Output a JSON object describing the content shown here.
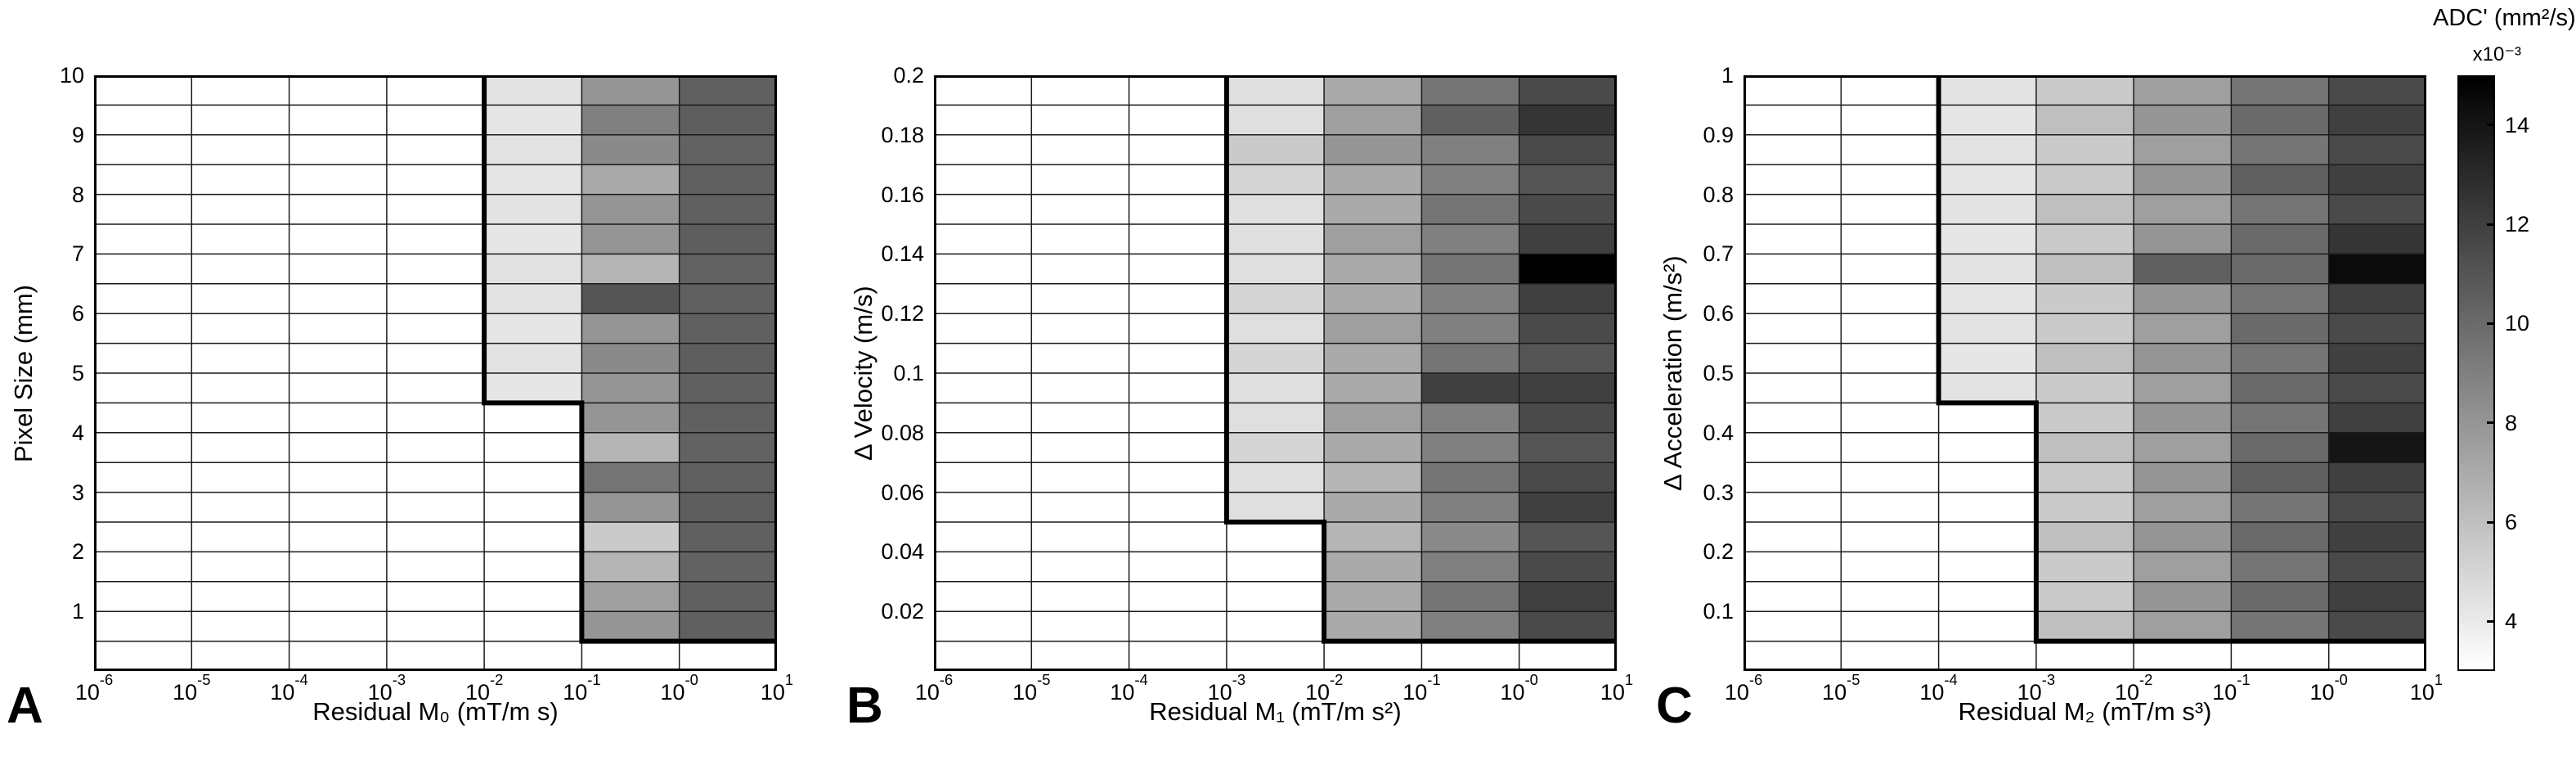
{
  "figure": {
    "background": "#ffffff"
  },
  "colorbar": {
    "title": "ADC' (mm²/s)",
    "scale_note": "x10⁻³",
    "tick_values": [
      4,
      6,
      8,
      10,
      12,
      14
    ],
    "tick_labels": [
      "4",
      "6",
      "8",
      "10",
      "12",
      "14"
    ],
    "range": [
      3,
      15
    ],
    "color_low": "#ffffff",
    "color_high": "#000000",
    "position": "right"
  },
  "chart_data": [
    {
      "type": "heatmap",
      "panel_label": "A",
      "xlabel": "Residual M₀ (mT/m s)",
      "ylabel": "Pixel Size (mm)",
      "x_scale": "log",
      "x_tick_base": "10",
      "x_tick_exponents": [
        "-6",
        "-5",
        "-4",
        "-3",
        "-2",
        "-1",
        "-0",
        "1"
      ],
      "y_range": [
        0,
        10
      ],
      "y_tick_values": [
        10,
        9,
        8,
        7,
        6,
        5,
        4,
        3,
        2,
        1
      ],
      "y_tick_labels": [
        "10",
        "9",
        "8",
        "7",
        "6",
        "5",
        "4",
        "3",
        "2",
        "1"
      ],
      "grid": true,
      "boundary": [
        [
          4,
          10
        ],
        [
          4,
          4.5
        ],
        [
          5,
          4.5
        ],
        [
          5,
          0.5
        ],
        [
          7,
          0.5
        ]
      ],
      "values": [
        [
          3,
          3,
          3,
          3,
          4.3,
          8,
          10.5
        ],
        [
          3,
          3,
          3,
          3,
          4.2,
          9,
          10.6
        ],
        [
          3,
          3,
          3,
          3,
          4.3,
          8.5,
          10.4
        ],
        [
          3,
          3,
          3,
          3,
          4.2,
          7,
          10.5
        ],
        [
          3,
          3,
          3,
          3,
          4.3,
          8,
          10.5
        ],
        [
          3,
          3,
          3,
          3,
          4.2,
          8,
          10.6
        ],
        [
          3,
          3,
          3,
          3,
          4.4,
          6.5,
          10.4
        ],
        [
          3,
          3,
          3,
          3,
          4.3,
          11,
          10.5
        ],
        [
          3,
          3,
          3,
          3,
          4.2,
          8,
          10.5
        ],
        [
          3,
          3,
          3,
          3,
          4.3,
          8.5,
          10.6
        ],
        [
          3,
          3,
          3,
          3,
          4.2,
          8,
          10.5
        ],
        [
          3,
          3,
          3,
          3,
          3,
          8,
          10.5
        ],
        [
          3,
          3,
          3,
          3,
          3,
          6.5,
          10.4
        ],
        [
          3,
          3,
          3,
          3,
          3,
          9.5,
          10.5
        ],
        [
          3,
          3,
          3,
          3,
          3,
          8,
          10.6
        ],
        [
          3,
          3,
          3,
          3,
          3,
          5.5,
          10.5
        ],
        [
          3,
          3,
          3,
          3,
          3,
          6.5,
          10.4
        ],
        [
          3,
          3,
          3,
          3,
          3,
          7.5,
          10.5
        ],
        [
          3,
          3,
          3,
          3,
          3,
          8,
          10.5
        ],
        [
          3,
          3,
          3,
          3,
          3,
          3,
          3
        ]
      ]
    },
    {
      "type": "heatmap",
      "panel_label": "B",
      "xlabel": "Residual M₁ (mT/m s²)",
      "ylabel": "Δ Velocity (m/s)",
      "x_scale": "log",
      "x_tick_base": "10",
      "x_tick_exponents": [
        "-6",
        "-5",
        "-4",
        "-3",
        "-2",
        "-1",
        "-0",
        "1"
      ],
      "y_range": [
        0,
        0.2
      ],
      "y_tick_values": [
        0.2,
        0.18,
        0.16,
        0.14,
        0.12,
        0.1,
        0.08,
        0.06,
        0.04,
        0.02
      ],
      "y_tick_labels": [
        "0.2",
        "0.18",
        "0.16",
        "0.14",
        "0.12",
        "0.1",
        "0.08",
        "0.06",
        "0.04",
        "0.02"
      ],
      "grid": true,
      "boundary": [
        [
          3,
          0.2
        ],
        [
          3,
          0.05
        ],
        [
          4,
          0.05
        ],
        [
          4,
          0.01
        ],
        [
          7,
          0.01
        ]
      ],
      "values": [
        [
          3,
          3,
          3,
          4.5,
          7,
          9.5,
          11.5
        ],
        [
          3,
          3,
          3,
          4.5,
          7.5,
          10.5,
          12.5
        ],
        [
          3,
          3,
          3,
          5.5,
          8,
          9,
          11.5
        ],
        [
          3,
          3,
          3,
          5,
          7,
          9,
          11
        ],
        [
          3,
          3,
          3,
          4.5,
          7,
          9.5,
          11.5
        ],
        [
          3,
          3,
          3,
          4.5,
          7.5,
          9,
          12
        ],
        [
          3,
          3,
          3,
          4.5,
          7,
          9.5,
          15
        ],
        [
          3,
          3,
          3,
          5,
          7,
          9,
          12
        ],
        [
          3,
          3,
          3,
          4.5,
          7.5,
          9,
          11.5
        ],
        [
          3,
          3,
          3,
          5,
          7,
          9.5,
          11
        ],
        [
          3,
          3,
          3,
          4.5,
          7,
          12,
          12
        ],
        [
          3,
          3,
          3,
          4.5,
          7.5,
          9,
          11.5
        ],
        [
          3,
          3,
          3,
          5,
          7,
          9,
          11
        ],
        [
          3,
          3,
          3,
          4.5,
          6.5,
          9.5,
          11.5
        ],
        [
          3,
          3,
          3,
          4.5,
          7,
          9,
          12
        ],
        [
          3,
          3,
          3,
          3,
          6.5,
          8.5,
          11
        ],
        [
          3,
          3,
          3,
          3,
          7,
          9,
          11.5
        ],
        [
          3,
          3,
          3,
          3,
          7,
          9.5,
          12
        ],
        [
          3,
          3,
          3,
          3,
          7,
          9,
          11.5
        ],
        [
          3,
          3,
          3,
          3,
          3,
          3,
          3
        ]
      ]
    },
    {
      "type": "heatmap",
      "panel_label": "C",
      "xlabel": "Residual M₂ (mT/m s³)",
      "ylabel": "Δ Acceleration (m/s²)",
      "x_scale": "log",
      "x_tick_base": "10",
      "x_tick_exponents": [
        "-6",
        "-5",
        "-4",
        "-3",
        "-2",
        "-1",
        "-0",
        "1"
      ],
      "y_range": [
        0,
        1
      ],
      "y_tick_values": [
        1,
        0.9,
        0.8,
        0.7,
        0.6,
        0.5,
        0.4,
        0.3,
        0.2,
        0.1
      ],
      "y_tick_labels": [
        "1",
        "0.9",
        "0.8",
        "0.7",
        "0.6",
        "0.5",
        "0.4",
        "0.3",
        "0.2",
        "0.1"
      ],
      "grid": true,
      "boundary": [
        [
          2,
          1
        ],
        [
          2,
          0.45
        ],
        [
          3,
          0.45
        ],
        [
          3,
          0.05
        ],
        [
          7,
          0.05
        ]
      ],
      "values": [
        [
          3,
          3,
          4.3,
          5.5,
          7.5,
          9.5,
          11.5
        ],
        [
          3,
          3,
          4.2,
          6,
          8,
          10,
          12
        ],
        [
          3,
          3,
          4.3,
          5.5,
          7.5,
          9.5,
          11.5
        ],
        [
          3,
          3,
          4.2,
          5.5,
          8,
          10.5,
          12
        ],
        [
          3,
          3,
          4.3,
          6,
          7.5,
          9.5,
          11.5
        ],
        [
          3,
          3,
          4.2,
          5.5,
          8,
          10,
          12.5
        ],
        [
          3,
          3,
          4.3,
          6,
          10.5,
          10,
          14.5
        ],
        [
          3,
          3,
          4.2,
          5.5,
          8,
          9.5,
          12
        ],
        [
          3,
          3,
          4.3,
          5.5,
          7.5,
          10,
          11.5
        ],
        [
          3,
          3,
          4.2,
          6,
          8,
          9.5,
          12
        ],
        [
          3,
          3,
          4.3,
          5.5,
          7.5,
          10,
          11.5
        ],
        [
          3,
          3,
          3,
          5.5,
          8,
          9.5,
          12
        ],
        [
          3,
          3,
          3,
          6,
          7.5,
          10,
          14
        ],
        [
          3,
          3,
          3,
          5.5,
          8,
          10.5,
          12
        ],
        [
          3,
          3,
          3,
          5.5,
          7.5,
          9.5,
          11.5
        ],
        [
          3,
          3,
          3,
          6,
          8,
          10,
          12
        ],
        [
          3,
          3,
          3,
          5.5,
          7.5,
          9.5,
          11.5
        ],
        [
          3,
          3,
          3,
          5.5,
          8,
          10,
          12
        ],
        [
          3,
          3,
          3,
          6,
          7.5,
          9.5,
          11.5
        ],
        [
          3,
          3,
          3,
          3,
          3,
          3,
          3
        ]
      ]
    }
  ]
}
